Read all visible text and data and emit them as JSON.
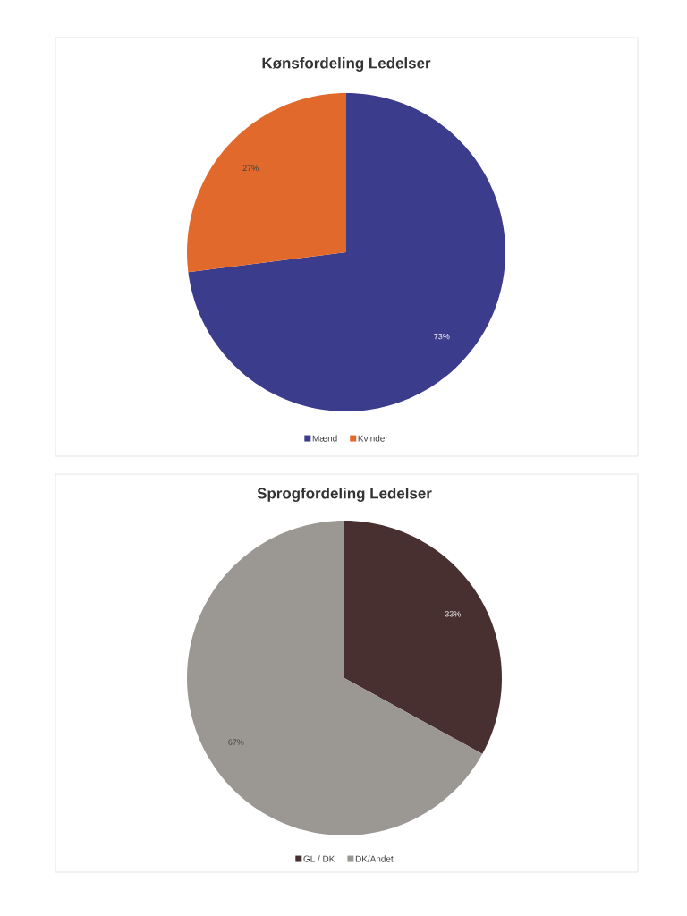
{
  "chart_data": [
    {
      "type": "pie",
      "title": "Kønsfordeling Ledelser",
      "categories": [
        "Mænd",
        "Kvinder"
      ],
      "values": [
        73,
        27
      ],
      "colors": [
        "#3c3c8c",
        "#e2692c"
      ],
      "value_labels": [
        "73%",
        "27%"
      ],
      "legend": "bottom"
    },
    {
      "type": "pie",
      "title": "Sprogfordeling Ledelser",
      "categories": [
        "GL / DK",
        "DK/Andet"
      ],
      "values": [
        33,
        67
      ],
      "colors": [
        "#47302f",
        "#9b9793"
      ],
      "value_labels": [
        "33%",
        "67%"
      ],
      "legend": "bottom"
    }
  ]
}
